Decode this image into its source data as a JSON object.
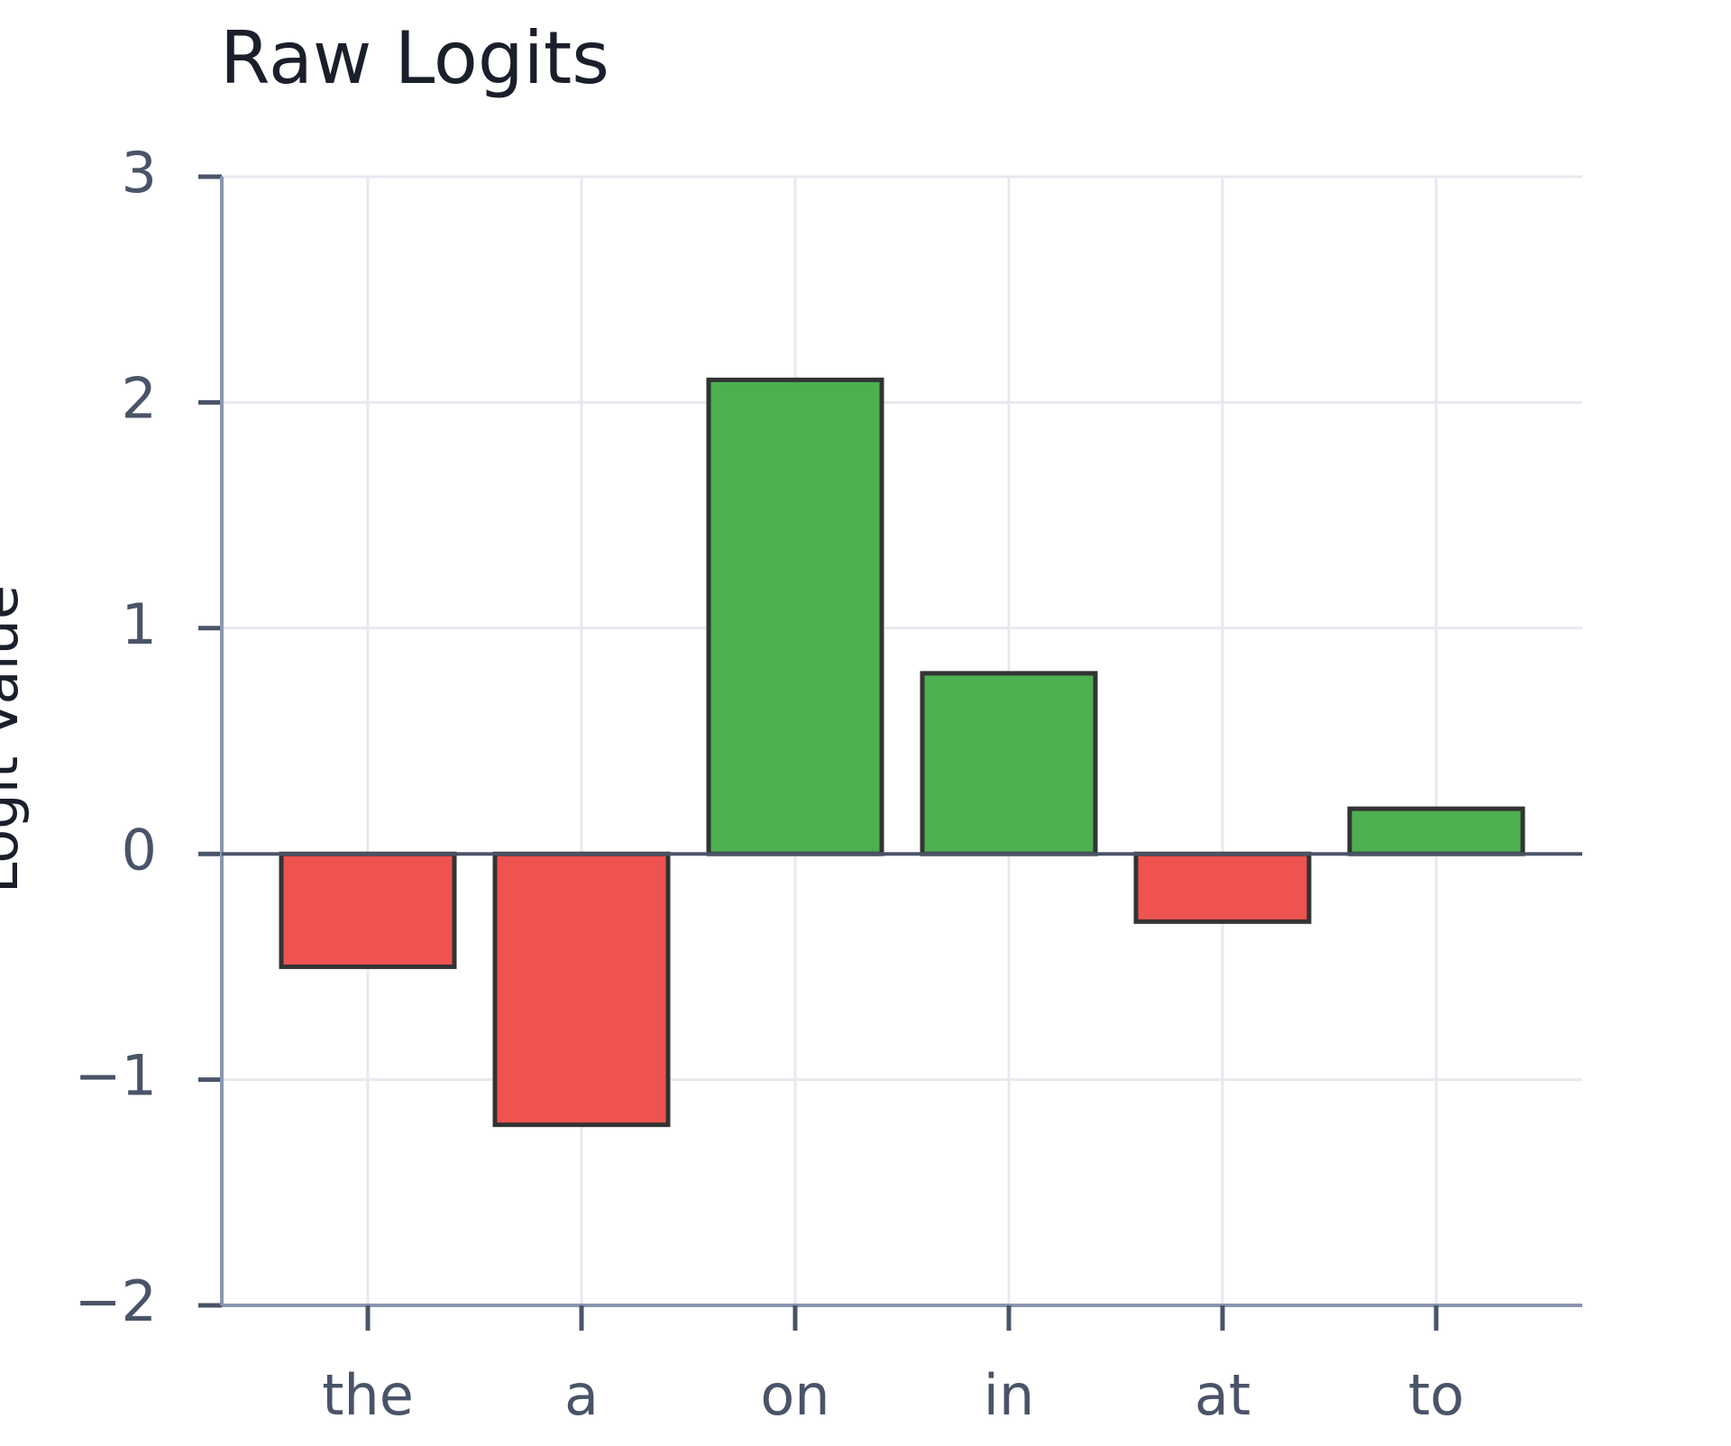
{
  "chart_data": {
    "type": "bar",
    "title": "Raw Logits",
    "y_label": "Logit Value",
    "categories": [
      "the",
      "a",
      "on",
      "in",
      "at",
      "to"
    ],
    "values": [
      -0.5,
      -1.2,
      2.1,
      0.8,
      -0.3,
      0.2
    ],
    "colors": [
      "#ef5350",
      "#ef5350",
      "#4caf50",
      "#4caf50",
      "#ef5350",
      "#4caf50"
    ],
    "ylim": [
      -2,
      3
    ],
    "yticks": [
      {
        "value": -2,
        "label": "−2"
      },
      {
        "value": -1,
        "label": "−1"
      },
      0,
      1,
      2,
      3
    ],
    "grid": true
  }
}
